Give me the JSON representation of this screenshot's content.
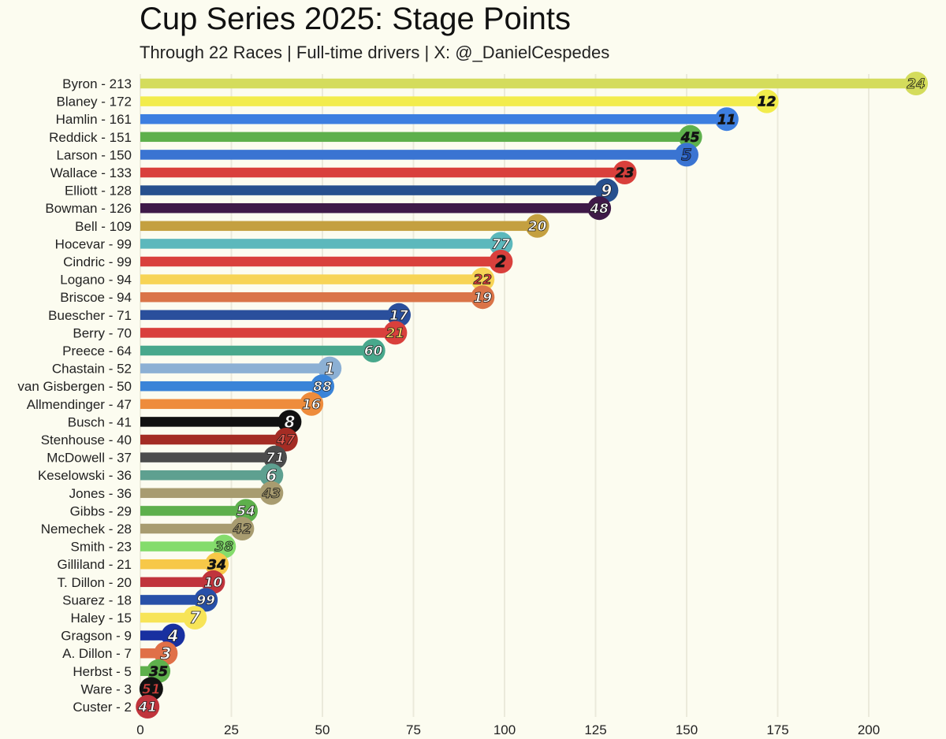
{
  "chart_data": {
    "type": "bar",
    "orientation": "horizontal",
    "title": "Cup Series 2025: Stage Points",
    "subtitle": "Through 22 Races | Full-time drivers | X: @_DanielCespedes",
    "xlim": [
      0,
      215
    ],
    "xticks": [
      0,
      25,
      50,
      75,
      100,
      125,
      150,
      175,
      200
    ],
    "grid": "vertical",
    "bars": [
      {
        "label": "Byron - 213",
        "value": 213,
        "number": "24",
        "color": "#d4dc5c",
        "numColor": "#c9d24a"
      },
      {
        "label": "Blaney - 172",
        "value": 172,
        "number": "12",
        "color": "#f2ec4c",
        "numColor": "#111111"
      },
      {
        "label": "Hamlin - 161",
        "value": 161,
        "number": "11",
        "color": "#3d7fe0",
        "numColor": "#111111"
      },
      {
        "label": "Reddick - 151",
        "value": 151,
        "number": "45",
        "color": "#5eb04c",
        "numColor": "#111111"
      },
      {
        "label": "Larson - 150",
        "value": 150,
        "number": "5",
        "color": "#3a74d2",
        "numColor": "#1f4fb0"
      },
      {
        "label": "Wallace - 133",
        "value": 133,
        "number": "23",
        "color": "#d9403c",
        "numColor": "#111111"
      },
      {
        "label": "Elliott - 128",
        "value": 128,
        "number": "9",
        "color": "#27508e",
        "numColor": "#ffffff"
      },
      {
        "label": "Bowman - 126",
        "value": 126,
        "number": "48",
        "color": "#3f1a48",
        "numColor": "#ffffff"
      },
      {
        "label": "Bell - 109",
        "value": 109,
        "number": "20",
        "color": "#c4a040",
        "numColor": "#ffffff"
      },
      {
        "label": "Hocevar - 99",
        "value": 99,
        "number": "77",
        "color": "#5cb8bc",
        "numColor": "#ffffff"
      },
      {
        "label": "Cindric - 99",
        "value": 99,
        "number": "2",
        "color": "#d9403c",
        "numColor": "#111111"
      },
      {
        "label": "Logano - 94",
        "value": 94,
        "number": "22",
        "color": "#f7d456",
        "numColor": "#d9403c"
      },
      {
        "label": "Briscoe - 94",
        "value": 94,
        "number": "19",
        "color": "#da7448",
        "numColor": "#ffffff"
      },
      {
        "label": "Buescher - 71",
        "value": 71,
        "number": "17",
        "color": "#2a4f9c",
        "numColor": "#ffffff"
      },
      {
        "label": "Berry - 70",
        "value": 70,
        "number": "21",
        "color": "#d9403c",
        "numColor": "#f2d060"
      },
      {
        "label": "Preece - 64",
        "value": 64,
        "number": "60",
        "color": "#48a88c",
        "numColor": "#ffffff"
      },
      {
        "label": "Chastain - 52",
        "value": 52,
        "number": "1",
        "color": "#8cb0d4",
        "numColor": "#ffffff"
      },
      {
        "label": "van Gisbergen - 50",
        "value": 50,
        "number": "88",
        "color": "#3a84d8",
        "numColor": "#ffffff"
      },
      {
        "label": "Allmendinger - 47",
        "value": 47,
        "number": "16",
        "color": "#ee8c3c",
        "numColor": "#ffffff"
      },
      {
        "label": "Busch - 41",
        "value": 41,
        "number": "8",
        "color": "#111111",
        "numColor": "#ffffff"
      },
      {
        "label": "Stenhouse - 40",
        "value": 40,
        "number": "47",
        "color": "#a42c24",
        "numColor": "#e85a50"
      },
      {
        "label": "McDowell - 37",
        "value": 37,
        "number": "71",
        "color": "#4c4c4c",
        "numColor": "#ffffff"
      },
      {
        "label": "Keselowski - 36",
        "value": 36,
        "number": "6",
        "color": "#5ea090",
        "numColor": "#ffffff"
      },
      {
        "label": "Jones - 36",
        "value": 36,
        "number": "43",
        "color": "#a89c70",
        "numColor": "#9c9064"
      },
      {
        "label": "Gibbs - 29",
        "value": 29,
        "number": "54",
        "color": "#5eb04c",
        "numColor": "#ffffff"
      },
      {
        "label": "Nemechek - 28",
        "value": 28,
        "number": "42",
        "color": "#a89c70",
        "numColor": "#9c9064"
      },
      {
        "label": "Smith - 23",
        "value": 23,
        "number": "38",
        "color": "#84dc6c",
        "numColor": "#6cc058"
      },
      {
        "label": "Gilliland - 21",
        "value": 21,
        "number": "34",
        "color": "#f7c848",
        "numColor": "#111111"
      },
      {
        "label": "T. Dillon - 20",
        "value": 20,
        "number": "10",
        "color": "#c0343c",
        "numColor": "#ffffff"
      },
      {
        "label": "Suarez - 18",
        "value": 18,
        "number": "99",
        "color": "#2850a8",
        "numColor": "#ffffff"
      },
      {
        "label": "Haley - 15",
        "value": 15,
        "number": "7",
        "color": "#f7e458",
        "numColor": "#ffffff"
      },
      {
        "label": "Gragson - 9",
        "value": 9,
        "number": "4",
        "color": "#1830a0",
        "numColor": "#ffffff"
      },
      {
        "label": "A. Dillon - 7",
        "value": 7,
        "number": "3",
        "color": "#e07048",
        "numColor": "#ffffff"
      },
      {
        "label": "Herbst - 5",
        "value": 5,
        "number": "35",
        "color": "#5eb04c",
        "numColor": "#111111"
      },
      {
        "label": "Ware - 3",
        "value": 3,
        "number": "51",
        "color": "#111111",
        "numColor": "#d9403c"
      },
      {
        "label": "Custer - 2",
        "value": 2,
        "number": "41",
        "color": "#c0343c",
        "numColor": "#ffffff"
      }
    ]
  }
}
